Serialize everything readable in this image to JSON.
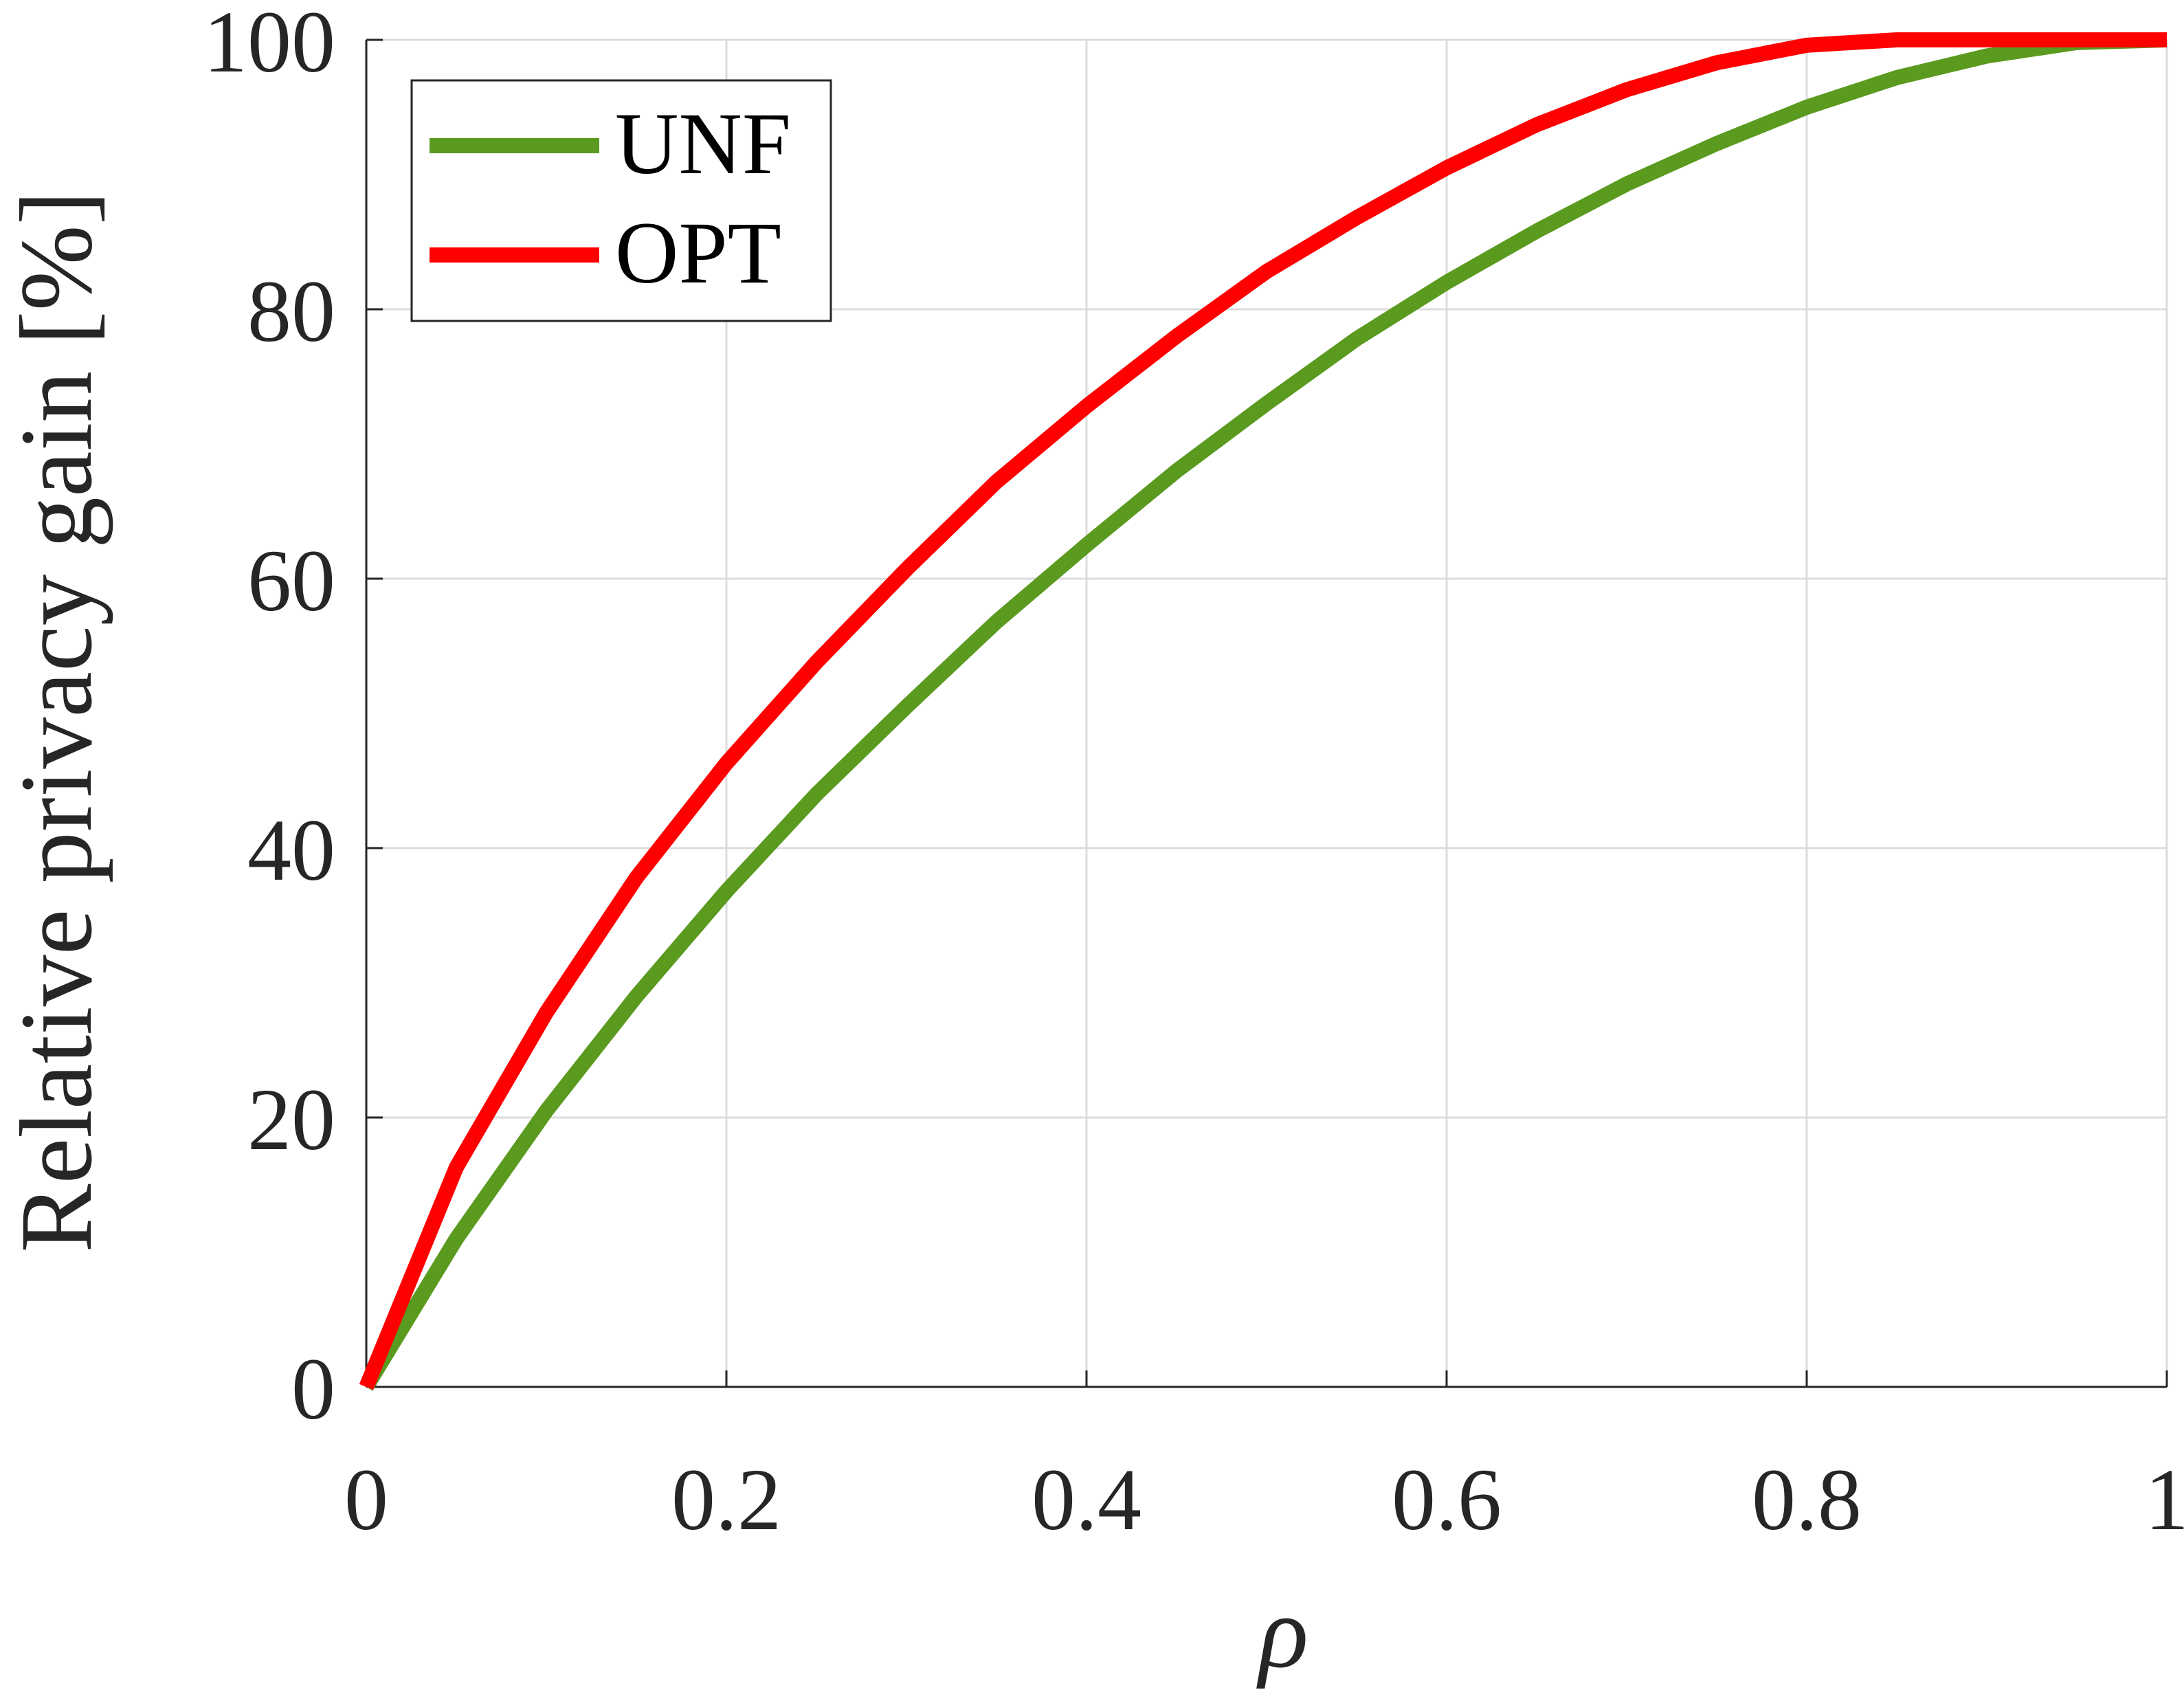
{
  "chart_data": {
    "type": "line",
    "xlabel": "ρ",
    "ylabel": "Relative privacy gain [%]",
    "xlim": [
      0,
      1
    ],
    "ylim": [
      0,
      100
    ],
    "xticks": [
      "0",
      "0.2",
      "0.4",
      "0.6",
      "0.8",
      "1"
    ],
    "yticks": [
      "0",
      "20",
      "40",
      "60",
      "80",
      "100"
    ],
    "grid": true,
    "legend_position": "top-left",
    "x": [
      0,
      0.05,
      0.1,
      0.15,
      0.2,
      0.25,
      0.3,
      0.35,
      0.4,
      0.45,
      0.5,
      0.55,
      0.6,
      0.65,
      0.7,
      0.75,
      0.8,
      0.85,
      0.9,
      0.95,
      1.0
    ],
    "series": [
      {
        "name": "UNF",
        "color": "#5a9a1f",
        "values": [
          0,
          11,
          20.5,
          29,
          36.8,
          44,
          50.5,
          56.8,
          62.5,
          68,
          73,
          77.8,
          82,
          85.8,
          89.3,
          92.3,
          95,
          97.2,
          98.8,
          99.8,
          100
        ]
      },
      {
        "name": "OPT",
        "color": "#ff0000",
        "values": [
          0,
          16.3,
          27.8,
          37.8,
          46.3,
          53.8,
          60.7,
          67.2,
          72.8,
          78,
          82.8,
          86.8,
          90.5,
          93.7,
          96.3,
          98.3,
          99.6,
          100,
          100,
          100,
          100
        ]
      }
    ]
  }
}
